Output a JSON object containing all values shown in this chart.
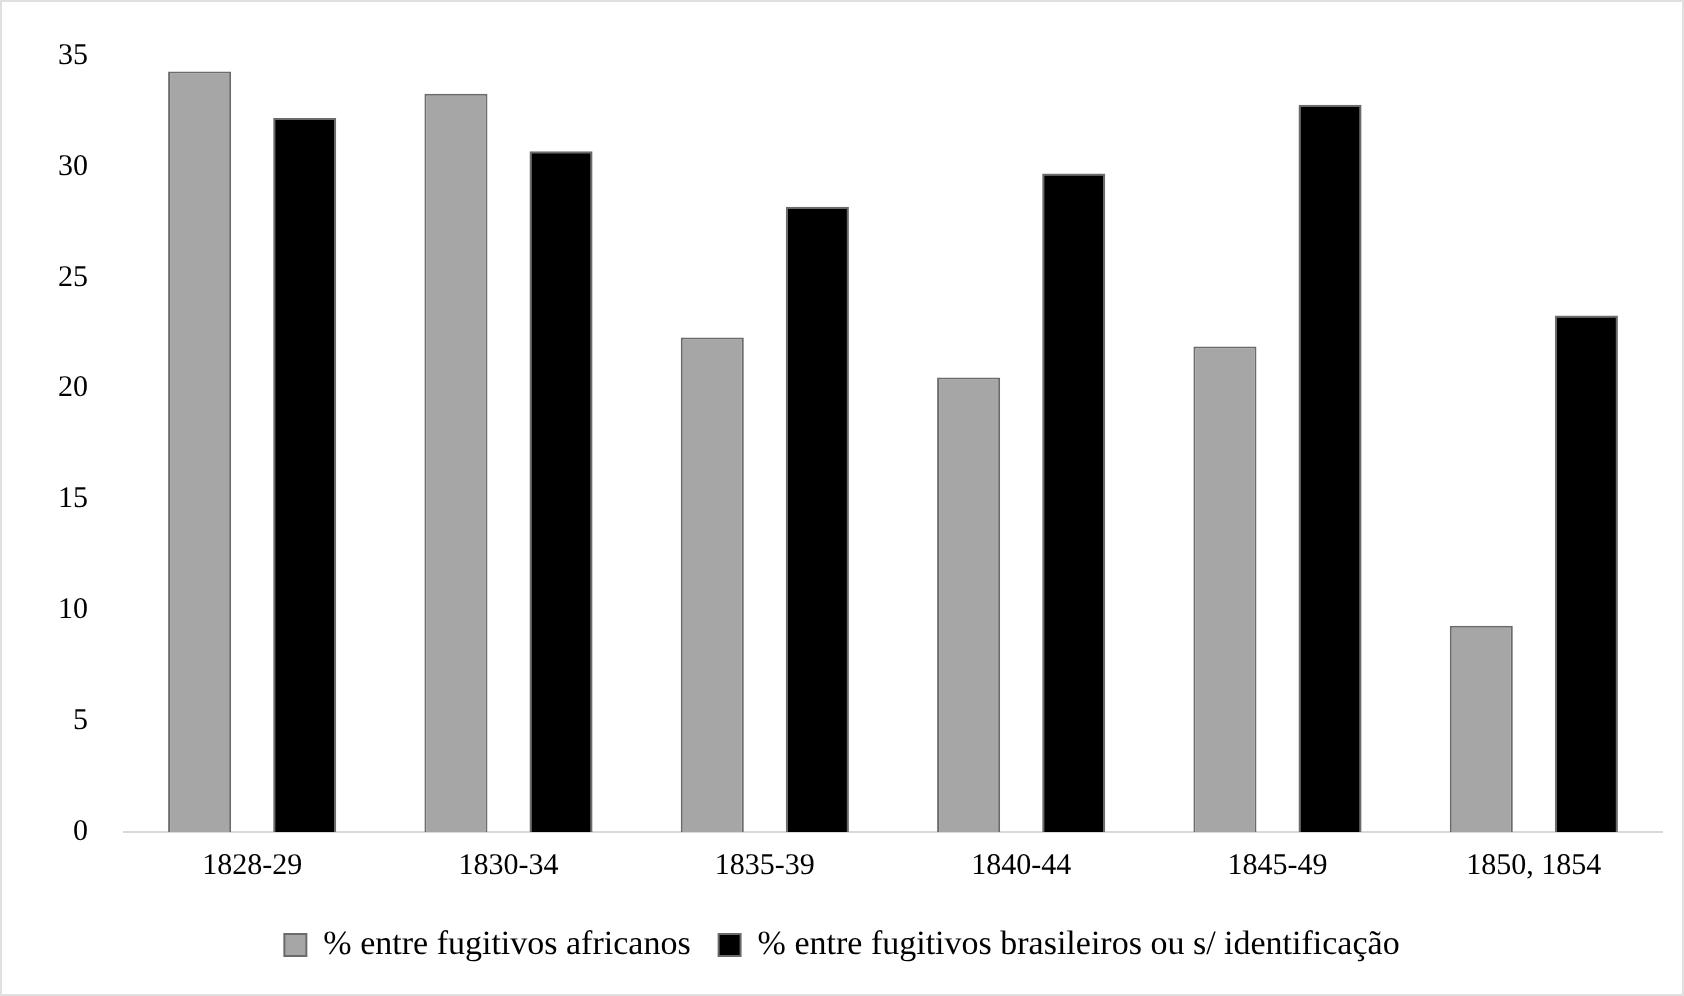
{
  "chart_data": {
    "type": "bar",
    "categories": [
      "1828-29",
      "1830-34",
      "1835-39",
      "1840-44",
      "1845-49",
      "1850, 1854"
    ],
    "series": [
      {
        "name": "% entre fugitivos africanos",
        "color": "#a6a6a6",
        "values": [
          34.3,
          33.3,
          22.3,
          20.5,
          21.9,
          9.3
        ]
      },
      {
        "name": "% entre fugitivos brasileiros ou s/ identificação",
        "color": "#000000",
        "values": [
          32.2,
          30.7,
          28.2,
          29.7,
          32.8,
          23.3
        ]
      }
    ],
    "ylim": [
      0,
      35
    ],
    "yticks": [
      0,
      5,
      10,
      15,
      20,
      25,
      30,
      35
    ],
    "grid": false,
    "legend": "bottom"
  }
}
